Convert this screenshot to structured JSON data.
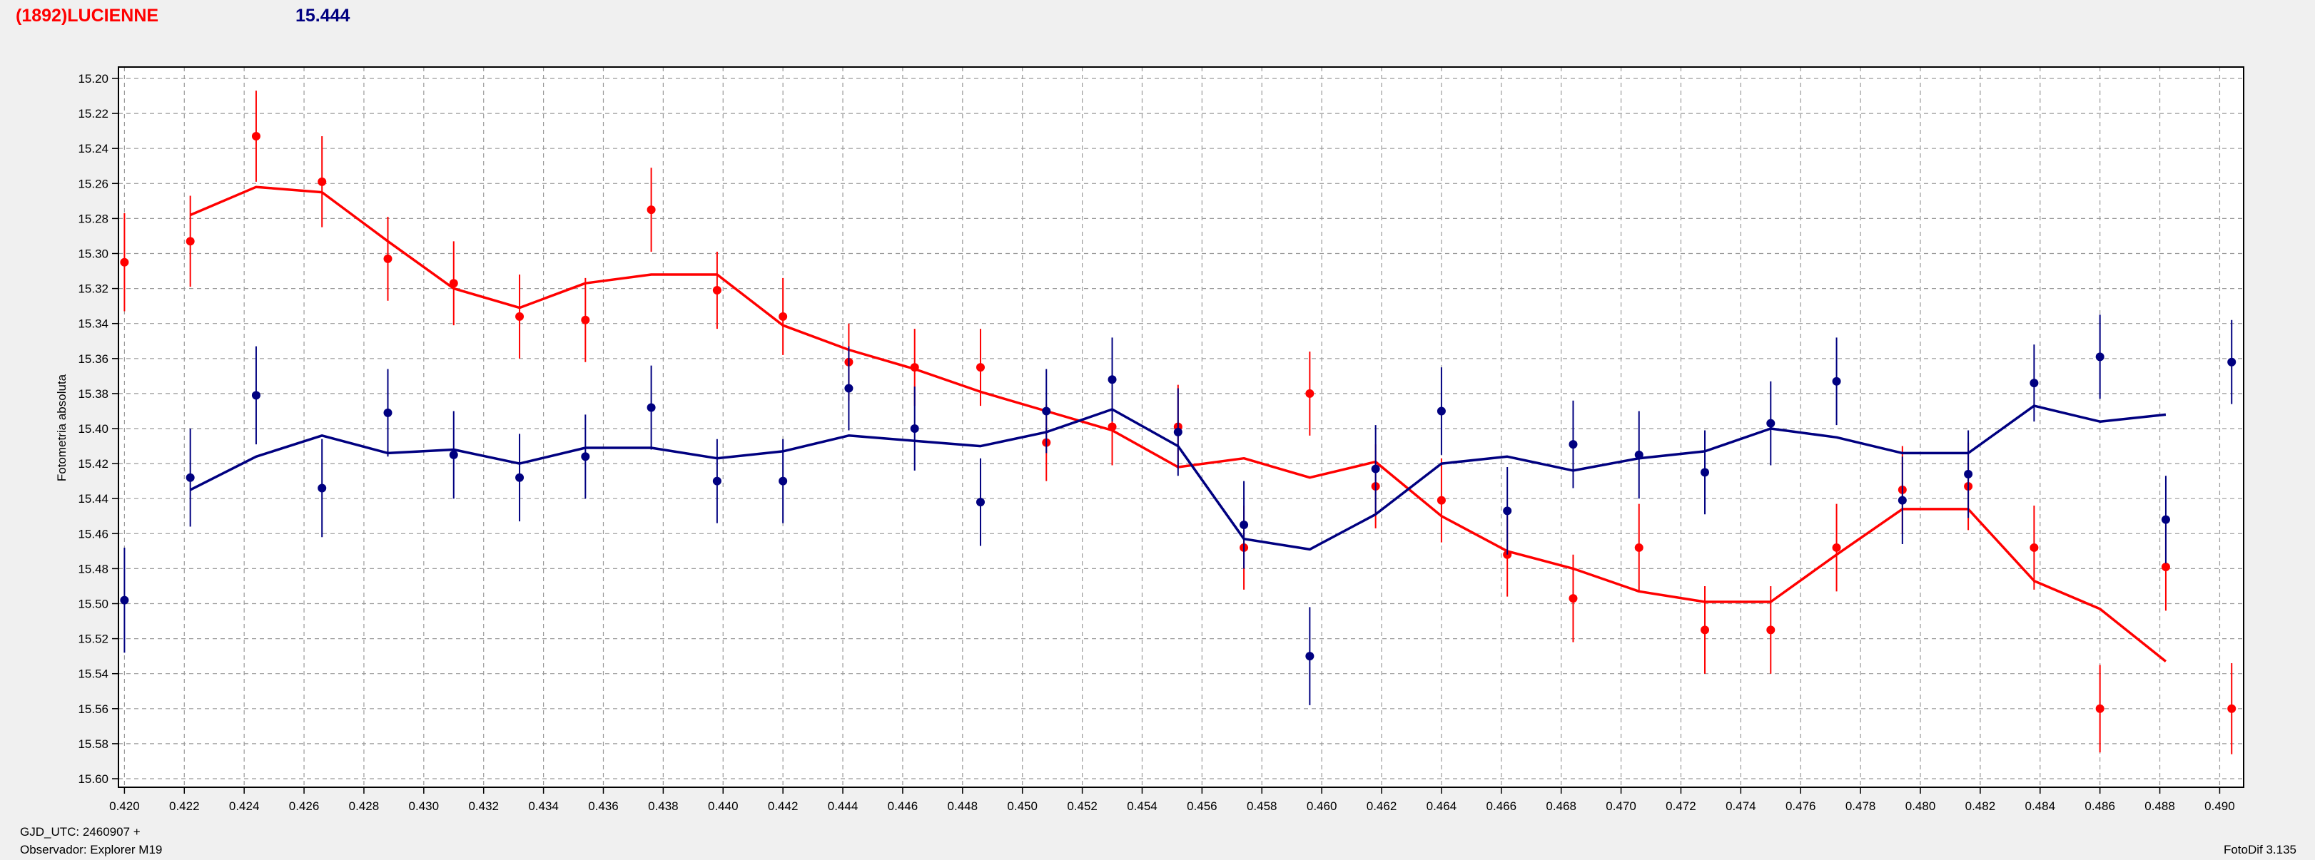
{
  "header": {
    "object_name": "(1892)LUCIENNE",
    "magnitude": "15.444",
    "colors": {
      "object": "#ff0000",
      "magnitude": "#000080"
    }
  },
  "footer": {
    "gjd": "GJD_UTC: 2460907 +",
    "observer": "Observador: Explorer M19",
    "version": "FotoDif 3.135"
  },
  "chart_data": {
    "type": "scatter",
    "ylabel": "Fotometria absoluta",
    "xlim": [
      0.4198,
      0.4908
    ],
    "ylim": [
      15.2,
      15.6
    ],
    "y_inverted": true,
    "grid": true,
    "x_ticks": [
      "0.420",
      "0.422",
      "0.424",
      "0.426",
      "0.428",
      "0.430",
      "0.432",
      "0.434",
      "0.436",
      "0.438",
      "0.440",
      "0.442",
      "0.444",
      "0.446",
      "0.448",
      "0.450",
      "0.452",
      "0.454",
      "0.456",
      "0.458",
      "0.460",
      "0.462",
      "0.464",
      "0.466",
      "0.468",
      "0.470",
      "0.472",
      "0.474",
      "0.476",
      "0.478",
      "0.480",
      "0.482",
      "0.484",
      "0.486",
      "0.488",
      "0.490"
    ],
    "y_ticks": [
      "15.20",
      "15.22",
      "15.24",
      "15.26",
      "15.28",
      "15.30",
      "15.32",
      "15.34",
      "15.36",
      "15.38",
      "15.40",
      "15.42",
      "15.44",
      "15.46",
      "15.48",
      "15.50",
      "15.52",
      "15.54",
      "15.56",
      "15.58",
      "15.60"
    ],
    "series": [
      {
        "color": "#ff0000",
        "points": [
          {
            "x": 0.42,
            "y": 15.305,
            "err": 0.028
          },
          {
            "x": 0.4222,
            "y": 15.293,
            "err": 0.026
          },
          {
            "x": 0.4244,
            "y": 15.233,
            "err": 0.026
          },
          {
            "x": 0.4266,
            "y": 15.259,
            "err": 0.026
          },
          {
            "x": 0.4288,
            "y": 15.303,
            "err": 0.024
          },
          {
            "x": 0.431,
            "y": 15.317,
            "err": 0.024
          },
          {
            "x": 0.4332,
            "y": 15.336,
            "err": 0.024
          },
          {
            "x": 0.4354,
            "y": 15.338,
            "err": 0.024
          },
          {
            "x": 0.4376,
            "y": 15.275,
            "err": 0.024
          },
          {
            "x": 0.4398,
            "y": 15.321,
            "err": 0.022
          },
          {
            "x": 0.442,
            "y": 15.336,
            "err": 0.022
          },
          {
            "x": 0.4442,
            "y": 15.362,
            "err": 0.022
          },
          {
            "x": 0.4464,
            "y": 15.365,
            "err": 0.022
          },
          {
            "x": 0.4486,
            "y": 15.365,
            "err": 0.022
          },
          {
            "x": 0.4508,
            "y": 15.408,
            "err": 0.022
          },
          {
            "x": 0.453,
            "y": 15.399,
            "err": 0.022
          },
          {
            "x": 0.4552,
            "y": 15.399,
            "err": 0.024
          },
          {
            "x": 0.4574,
            "y": 15.468,
            "err": 0.024
          },
          {
            "x": 0.4596,
            "y": 15.38,
            "err": 0.024
          },
          {
            "x": 0.4618,
            "y": 15.433,
            "err": 0.024
          },
          {
            "x": 0.464,
            "y": 15.441,
            "err": 0.024
          },
          {
            "x": 0.4662,
            "y": 15.472,
            "err": 0.024
          },
          {
            "x": 0.4684,
            "y": 15.497,
            "err": 0.025
          },
          {
            "x": 0.4706,
            "y": 15.468,
            "err": 0.025
          },
          {
            "x": 0.4728,
            "y": 15.515,
            "err": 0.025
          },
          {
            "x": 0.475,
            "y": 15.515,
            "err": 0.025
          },
          {
            "x": 0.4772,
            "y": 15.468,
            "err": 0.025
          },
          {
            "x": 0.4794,
            "y": 15.435,
            "err": 0.025
          },
          {
            "x": 0.4816,
            "y": 15.433,
            "err": 0.025
          },
          {
            "x": 0.4838,
            "y": 15.468,
            "err": 0.024
          },
          {
            "x": 0.486,
            "y": 15.56,
            "err": 0.025
          },
          {
            "x": 0.4882,
            "y": 15.479,
            "err": 0.025
          },
          {
            "x": 0.4904,
            "y": 15.56,
            "err": 0.026
          }
        ],
        "trend": [
          {
            "x": 0.4222,
            "y": 15.278
          },
          {
            "x": 0.4244,
            "y": 15.262
          },
          {
            "x": 0.4266,
            "y": 15.265
          },
          {
            "x": 0.4288,
            "y": 15.293
          },
          {
            "x": 0.431,
            "y": 15.32
          },
          {
            "x": 0.4332,
            "y": 15.331
          },
          {
            "x": 0.4354,
            "y": 15.317
          },
          {
            "x": 0.4376,
            "y": 15.312
          },
          {
            "x": 0.4398,
            "y": 15.312
          },
          {
            "x": 0.442,
            "y": 15.341
          },
          {
            "x": 0.4442,
            "y": 15.355
          },
          {
            "x": 0.4464,
            "y": 15.366
          },
          {
            "x": 0.4486,
            "y": 15.379
          },
          {
            "x": 0.4508,
            "y": 15.39
          },
          {
            "x": 0.453,
            "y": 15.401
          },
          {
            "x": 0.4552,
            "y": 15.422
          },
          {
            "x": 0.4574,
            "y": 15.417
          },
          {
            "x": 0.4596,
            "y": 15.428
          },
          {
            "x": 0.4618,
            "y": 15.419
          },
          {
            "x": 0.464,
            "y": 15.45
          },
          {
            "x": 0.4662,
            "y": 15.47
          },
          {
            "x": 0.4684,
            "y": 15.48
          },
          {
            "x": 0.4706,
            "y": 15.493
          },
          {
            "x": 0.4728,
            "y": 15.499
          },
          {
            "x": 0.475,
            "y": 15.499
          },
          {
            "x": 0.4772,
            "y": 15.472
          },
          {
            "x": 0.4794,
            "y": 15.446
          },
          {
            "x": 0.4816,
            "y": 15.446
          },
          {
            "x": 0.4838,
            "y": 15.487
          },
          {
            "x": 0.486,
            "y": 15.503
          },
          {
            "x": 0.4882,
            "y": 15.533
          }
        ]
      },
      {
        "color": "#000080",
        "points": [
          {
            "x": 0.42,
            "y": 15.498,
            "err": 0.03
          },
          {
            "x": 0.4222,
            "y": 15.428,
            "err": 0.028
          },
          {
            "x": 0.4244,
            "y": 15.381,
            "err": 0.028
          },
          {
            "x": 0.4266,
            "y": 15.434,
            "err": 0.028
          },
          {
            "x": 0.4288,
            "y": 15.391,
            "err": 0.025
          },
          {
            "x": 0.431,
            "y": 15.415,
            "err": 0.025
          },
          {
            "x": 0.4332,
            "y": 15.428,
            "err": 0.025
          },
          {
            "x": 0.4354,
            "y": 15.416,
            "err": 0.024
          },
          {
            "x": 0.4376,
            "y": 15.388,
            "err": 0.024
          },
          {
            "x": 0.4398,
            "y": 15.43,
            "err": 0.024
          },
          {
            "x": 0.442,
            "y": 15.43,
            "err": 0.024
          },
          {
            "x": 0.4442,
            "y": 15.377,
            "err": 0.024
          },
          {
            "x": 0.4464,
            "y": 15.4,
            "err": 0.024
          },
          {
            "x": 0.4486,
            "y": 15.442,
            "err": 0.025
          },
          {
            "x": 0.4508,
            "y": 15.39,
            "err": 0.024
          },
          {
            "x": 0.453,
            "y": 15.372,
            "err": 0.024
          },
          {
            "x": 0.4552,
            "y": 15.402,
            "err": 0.025
          },
          {
            "x": 0.4574,
            "y": 15.455,
            "err": 0.025
          },
          {
            "x": 0.4596,
            "y": 15.53,
            "err": 0.028
          },
          {
            "x": 0.4618,
            "y": 15.423,
            "err": 0.025
          },
          {
            "x": 0.464,
            "y": 15.39,
            "err": 0.025
          },
          {
            "x": 0.4662,
            "y": 15.447,
            "err": 0.025
          },
          {
            "x": 0.4684,
            "y": 15.409,
            "err": 0.025
          },
          {
            "x": 0.4706,
            "y": 15.415,
            "err": 0.025
          },
          {
            "x": 0.4728,
            "y": 15.425,
            "err": 0.024
          },
          {
            "x": 0.475,
            "y": 15.397,
            "err": 0.024
          },
          {
            "x": 0.4772,
            "y": 15.373,
            "err": 0.025
          },
          {
            "x": 0.4794,
            "y": 15.441,
            "err": 0.025
          },
          {
            "x": 0.4816,
            "y": 15.426,
            "err": 0.025
          },
          {
            "x": 0.4838,
            "y": 15.374,
            "err": 0.022
          },
          {
            "x": 0.486,
            "y": 15.359,
            "err": 0.024
          },
          {
            "x": 0.4882,
            "y": 15.452,
            "err": 0.025
          },
          {
            "x": 0.4904,
            "y": 15.362,
            "err": 0.024
          }
        ],
        "trend": [
          {
            "x": 0.4222,
            "y": 15.435
          },
          {
            "x": 0.4244,
            "y": 15.416
          },
          {
            "x": 0.4266,
            "y": 15.404
          },
          {
            "x": 0.4288,
            "y": 15.414
          },
          {
            "x": 0.431,
            "y": 15.412
          },
          {
            "x": 0.4332,
            "y": 15.42
          },
          {
            "x": 0.4354,
            "y": 15.411
          },
          {
            "x": 0.4376,
            "y": 15.411
          },
          {
            "x": 0.4398,
            "y": 15.417
          },
          {
            "x": 0.442,
            "y": 15.413
          },
          {
            "x": 0.4442,
            "y": 15.404
          },
          {
            "x": 0.4464,
            "y": 15.407
          },
          {
            "x": 0.4486,
            "y": 15.41
          },
          {
            "x": 0.4508,
            "y": 15.402
          },
          {
            "x": 0.453,
            "y": 15.389
          },
          {
            "x": 0.4552,
            "y": 15.41
          },
          {
            "x": 0.4574,
            "y": 15.463
          },
          {
            "x": 0.4596,
            "y": 15.469
          },
          {
            "x": 0.4618,
            "y": 15.449
          },
          {
            "x": 0.464,
            "y": 15.42
          },
          {
            "x": 0.4662,
            "y": 15.416
          },
          {
            "x": 0.4684,
            "y": 15.424
          },
          {
            "x": 0.4706,
            "y": 15.417
          },
          {
            "x": 0.4728,
            "y": 15.413
          },
          {
            "x": 0.475,
            "y": 15.4
          },
          {
            "x": 0.4772,
            "y": 15.405
          },
          {
            "x": 0.4794,
            "y": 15.414
          },
          {
            "x": 0.4816,
            "y": 15.414
          },
          {
            "x": 0.4838,
            "y": 15.387
          },
          {
            "x": 0.486,
            "y": 15.396
          },
          {
            "x": 0.4882,
            "y": 15.392
          }
        ]
      }
    ]
  }
}
